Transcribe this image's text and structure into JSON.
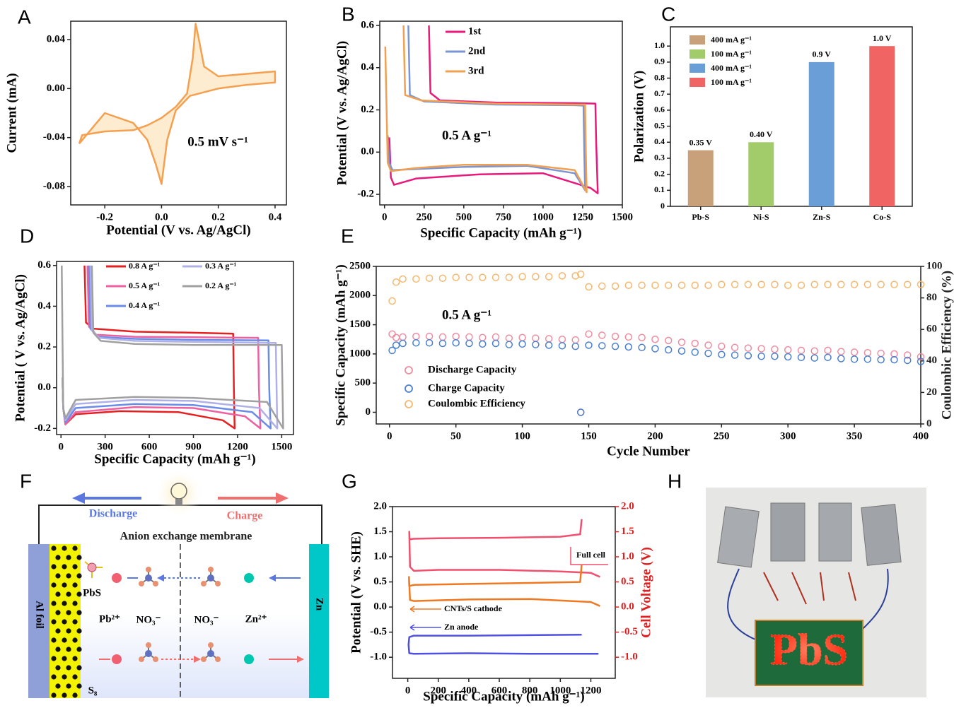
{
  "panel_labels": [
    "A",
    "B",
    "C",
    "D",
    "E",
    "F",
    "G",
    "H"
  ],
  "chart_data": [
    {
      "type": "line",
      "x_label": "Potential (V vs. Ag/AgCl)",
      "y_label": "Current (mA)",
      "annotations": [
        "0.5 mV s⁻¹"
      ],
      "xlim": [
        -0.32,
        0.44
      ],
      "xticks": [
        -0.2,
        {
          "value": 0,
          "label": "0.0"
        },
        0.2,
        0.4
      ],
      "ylim": [
        -0.095,
        0.055
      ],
      "yticks": [
        -0.08,
        -0.04,
        {
          "value": 0,
          "label": "0.00"
        },
        0.04
      ],
      "series": [
        {
          "color": "#f5a050",
          "x": [
            -0.29,
            -0.28,
            -0.2,
            -0.1,
            -0.05,
            0.0,
            0.05,
            0.09,
            0.11,
            0.12,
            0.13,
            0.15,
            0.2,
            0.3,
            0.4,
            0.4,
            0.3,
            0.2,
            0.1,
            0.05,
            0.02,
            0.0,
            -0.02,
            -0.05,
            -0.1,
            -0.2,
            -0.29
          ],
          "values": [
            -0.045,
            -0.038,
            -0.035,
            -0.034,
            -0.03,
            -0.024,
            -0.015,
            -0.004,
            0.025,
            0.053,
            0.042,
            0.018,
            0.01,
            0.012,
            0.014,
            0.005,
            0.003,
            0.0,
            -0.006,
            -0.018,
            -0.042,
            -0.078,
            -0.062,
            -0.042,
            -0.028,
            -0.02,
            -0.045
          ]
        }
      ]
    },
    {
      "type": "line",
      "x_label": "Specific Capacity (mAh g⁻¹)",
      "y_label": "Potential (V vs. Ag/AgCl)",
      "annotations": [
        "0.5 A g⁻¹"
      ],
      "xlim": [
        -30,
        1500
      ],
      "xticks": [
        0,
        250,
        500,
        750,
        1000,
        1250,
        1500
      ],
      "ylim": [
        -0.25,
        0.62
      ],
      "yticks": [
        -0.2,
        {
          "value": 0,
          "label": "0.0"
        },
        0.2,
        0.4,
        0.6
      ],
      "series": [
        {
          "name": "1st",
          "color": "#e8197a",
          "x": [
            280,
            290,
            350,
            700,
            1200,
            1330,
            1335,
            1345,
            1300,
            1000,
            600,
            200,
            60,
            40,
            30
          ],
          "values": [
            0.6,
            0.28,
            0.245,
            0.235,
            0.232,
            0.23,
            0.05,
            -0.195,
            -0.17,
            -0.1,
            -0.105,
            -0.125,
            -0.155,
            -0.12,
            0.07
          ]
        },
        {
          "name": "2nd",
          "color": "#7b95d4",
          "x": [
            150,
            160,
            250,
            700,
            1200,
            1255,
            1260,
            1265,
            1200,
            900,
            500,
            200,
            50,
            30,
            20
          ],
          "values": [
            0.6,
            0.27,
            0.24,
            0.225,
            0.222,
            0.22,
            0.0,
            -0.18,
            -0.1,
            -0.065,
            -0.07,
            -0.08,
            -0.085,
            -0.05,
            0.08
          ]
        },
        {
          "name": "3rd",
          "color": "#f0a050",
          "x": [
            120,
            130,
            230,
            700,
            1200,
            1265,
            1270,
            1275,
            1200,
            900,
            500,
            200,
            40,
            20,
            5
          ],
          "values": [
            0.6,
            0.27,
            0.245,
            0.23,
            0.225,
            0.225,
            0.0,
            -0.19,
            -0.085,
            -0.06,
            -0.06,
            -0.075,
            -0.09,
            -0.05,
            0.5
          ]
        }
      ]
    },
    {
      "type": "bar",
      "y_label": "Polarization (V)",
      "categories": [
        "Pb-S",
        "Ni-S",
        "Zn-S",
        "Co-S"
      ],
      "values": [
        0.35,
        0.4,
        0.9,
        1.0
      ],
      "value_labels": [
        "0.35 V",
        "0.40 V",
        "0.9 V",
        "1.0 V"
      ],
      "colors": [
        "#c8a07a",
        "#a2cc6a",
        "#6a9ed6",
        "#f06464"
      ],
      "legend_labels": [
        "400 mA g⁻¹",
        "100 mA g⁻¹",
        "400 mA g⁻¹",
        "100 mA g⁻¹"
      ],
      "ylim": [
        0,
        1.12
      ],
      "yticks": [
        0,
        0.1,
        0.2,
        0.3,
        0.4,
        0.5,
        0.6,
        0.7,
        0.8,
        0.9,
        {
          "value": 1,
          "label": "1.0"
        }
      ]
    },
    {
      "type": "line",
      "x_label": "Specific Capacity (mAh g⁻¹)",
      "y_label": "Potential ( V vs. Ag/AgCl)",
      "xlim": [
        -30,
        1580
      ],
      "xticks": [
        0,
        300,
        600,
        900,
        1200,
        1500
      ],
      "ylim": [
        -0.23,
        0.62
      ],
      "yticks": [
        -0.2,
        {
          "value": 0,
          "label": "0.0"
        },
        0.2,
        0.4,
        0.6
      ],
      "series": [
        {
          "name": "0.8 A g⁻¹",
          "color": "#e62020",
          "x": [
            160,
            170,
            220,
            500,
            900,
            1170,
            1175,
            1180,
            1100,
            800,
            400,
            100,
            30,
            15,
            10
          ],
          "values": [
            0.6,
            0.32,
            0.29,
            0.275,
            0.27,
            0.265,
            0.0,
            -0.2,
            -0.16,
            -0.12,
            -0.115,
            -0.13,
            -0.18,
            -0.1,
            0.05
          ]
        },
        {
          "name": "0.5 A g⁻¹",
          "color": "#ee60a0",
          "x": [
            180,
            190,
            240,
            500,
            900,
            1340,
            1345,
            1355,
            1250,
            900,
            500,
            100,
            30,
            15,
            10
          ],
          "values": [
            0.6,
            0.3,
            0.26,
            0.25,
            0.248,
            0.245,
            0.0,
            -0.2,
            -0.14,
            -0.1,
            -0.095,
            -0.12,
            -0.18,
            -0.1,
            0.05
          ]
        },
        {
          "name": "0.4 A g⁻¹",
          "color": "#6a8ce8",
          "x": [
            190,
            200,
            250,
            500,
            900,
            1410,
            1415,
            1425,
            1300,
            900,
            500,
            100,
            30,
            15,
            10
          ],
          "values": [
            0.6,
            0.29,
            0.25,
            0.24,
            0.235,
            0.232,
            0.0,
            -0.2,
            -0.12,
            -0.085,
            -0.08,
            -0.1,
            -0.17,
            -0.1,
            0.05
          ]
        },
        {
          "name": "0.3 A g⁻¹",
          "color": "#b0b0e8",
          "x": [
            200,
            210,
            260,
            500,
            900,
            1460,
            1465,
            1470,
            1350,
            900,
            500,
            100,
            30,
            15,
            10
          ],
          "values": [
            0.6,
            0.28,
            0.245,
            0.23,
            0.225,
            0.22,
            0.0,
            -0.2,
            -0.1,
            -0.065,
            -0.06,
            -0.08,
            -0.16,
            -0.1,
            0.05
          ]
        },
        {
          "name": "0.2 A g⁻¹",
          "color": "#a0a0a0",
          "x": [
            210,
            220,
            270,
            500,
            900,
            1500,
            1505,
            1510,
            1400,
            900,
            500,
            100,
            30,
            15,
            5
          ],
          "values": [
            0.6,
            0.27,
            0.23,
            0.215,
            0.21,
            0.21,
            0.0,
            -0.2,
            -0.07,
            -0.05,
            -0.045,
            -0.06,
            -0.15,
            -0.1,
            0.6
          ]
        }
      ]
    },
    {
      "type": "scatter",
      "x_label": "Cycle Number",
      "y_label": "Specific Capacity (mAh g⁻¹)",
      "y2_label": "Coulombic Efficiency (%)",
      "annotations": [
        "0.5 A g⁻¹"
      ],
      "xlim": [
        -10,
        400
      ],
      "xticks": [
        0,
        50,
        100,
        150,
        200,
        250,
        300,
        350,
        400
      ],
      "ylim": [
        -200,
        2500
      ],
      "yticks": [
        0,
        500,
        1000,
        1500,
        2000,
        2500
      ],
      "y2lim": [
        0,
        100
      ],
      "y2ticks": [
        0,
        20,
        40,
        60,
        80,
        100
      ],
      "x": [
        2,
        5,
        10,
        20,
        30,
        40,
        50,
        60,
        70,
        80,
        90,
        100,
        110,
        120,
        130,
        140,
        144,
        150,
        160,
        170,
        180,
        190,
        200,
        210,
        220,
        230,
        240,
        250,
        260,
        270,
        280,
        290,
        300,
        310,
        320,
        330,
        340,
        350,
        360,
        370,
        380,
        390,
        400
      ],
      "series": [
        {
          "name": "Discharge Capacity",
          "color": "#f08ca0",
          "values": [
            1340,
            1280,
            1290,
            1300,
            1300,
            1290,
            1300,
            1290,
            1280,
            1290,
            1270,
            1280,
            1270,
            1260,
            1250,
            1240,
            0,
            1340,
            1320,
            1300,
            1290,
            1280,
            1250,
            1230,
            1200,
            1180,
            1150,
            1130,
            1110,
            1100,
            1090,
            1080,
            1070,
            1060,
            1050,
            1060,
            1040,
            1030,
            1020,
            1010,
            1000,
            980,
            950
          ]
        },
        {
          "name": "Charge Capacity",
          "color": "#4a7fd0",
          "values": [
            1060,
            1150,
            1180,
            1190,
            1190,
            1180,
            1190,
            1180,
            1170,
            1180,
            1160,
            1170,
            1160,
            1150,
            1140,
            1130,
            0,
            1150,
            1140,
            1130,
            1120,
            1110,
            1090,
            1070,
            1050,
            1030,
            1010,
            990,
            980,
            970,
            960,
            960,
            950,
            940,
            930,
            940,
            920,
            910,
            910,
            900,
            900,
            890,
            870
          ]
        },
        {
          "name": "Coulombic Efficiency",
          "color": "#f5b870",
          "axis": "y2",
          "values": [
            78,
            90,
            92,
            92,
            92.5,
            92.5,
            93,
            93,
            93,
            93,
            93,
            93.5,
            93.5,
            93.5,
            94,
            94,
            95,
            87,
            87.5,
            87.5,
            88,
            88,
            88,
            88,
            88,
            88,
            88,
            88.5,
            88.5,
            88.5,
            88.5,
            88.5,
            88,
            88,
            88.5,
            88.5,
            88.5,
            88.5,
            88.5,
            88.5,
            88.5,
            88.5,
            88.5
          ]
        }
      ]
    },
    {
      "type": "line",
      "x_label": "Specific Capacity (mAh g⁻¹)",
      "y_label": "Potential (V vs. SHE)",
      "y2_label": "Cell Voltage (V)",
      "y2_color": "#e02020",
      "xlim": [
        -100,
        1360
      ],
      "xticks": [
        0,
        200,
        400,
        600,
        800,
        1000,
        1200
      ],
      "ylim": [
        -1.42,
        2.0
      ],
      "yticks": [
        {
          "value": -1,
          "label": "-1.0"
        },
        -0.5,
        {
          "value": 0,
          "label": "0.0"
        },
        0.5,
        {
          "value": 1,
          "label": "1.0"
        },
        1.5,
        {
          "value": 2,
          "label": "2.0"
        }
      ],
      "y2lim": [
        -1.42,
        2.0
      ],
      "y2ticks": [
        {
          "value": -1,
          "label": "-1.0"
        },
        -0.5,
        {
          "value": 0,
          "label": "0.0"
        },
        0.5,
        {
          "value": 1,
          "label": "1.0"
        },
        1.5,
        {
          "value": 2,
          "label": "2.0"
        }
      ],
      "series": [
        {
          "name": "Full cell",
          "color": "#f0506e",
          "axis": "y2",
          "x": [
            1140,
            1130,
            1000,
            600,
            200,
            40,
            12,
            10,
            15,
            40,
            200,
            600,
            1000,
            1200,
            1260
          ],
          "values": [
            1.75,
            1.45,
            1.4,
            1.38,
            1.37,
            1.36,
            1.35,
            1.5,
            0.8,
            0.72,
            0.74,
            0.74,
            0.71,
            0.68,
            0.6
          ]
        },
        {
          "name": "CNTs/S cathode",
          "color": "#f07820",
          "x": [
            1140,
            1130,
            800,
            400,
            40,
            10,
            8,
            15,
            40,
            400,
            800,
            1200,
            1260
          ],
          "values": [
            0.85,
            0.5,
            0.48,
            0.46,
            0.44,
            0.42,
            0.6,
            0.14,
            0.12,
            0.15,
            0.16,
            0.1,
            0.02
          ]
        },
        {
          "name": "Zn anode",
          "color": "#5050e0",
          "x": [
            1140,
            800,
            400,
            40,
            10,
            5,
            10,
            40,
            400,
            800,
            1250
          ],
          "values": [
            -0.55,
            -0.56,
            -0.57,
            -0.57,
            -0.6,
            -0.75,
            -0.92,
            -0.93,
            -0.92,
            -0.93,
            -0.93
          ]
        }
      ]
    }
  ],
  "diagram": {
    "discharge": "Discharge",
    "charge": "Charge",
    "membrane": "Anion exchange membrane",
    "left_electrode": "Al foil",
    "right_electrode": "Zn",
    "pbs": "PbS",
    "pb_ion": "Pb²⁺",
    "nitrate_left": "NO₃⁻",
    "nitrate_right": "NO₃⁻",
    "zn_ion": "Zn²⁺",
    "sulfur": "S₈"
  },
  "photo": {
    "display_text": "PbS"
  }
}
